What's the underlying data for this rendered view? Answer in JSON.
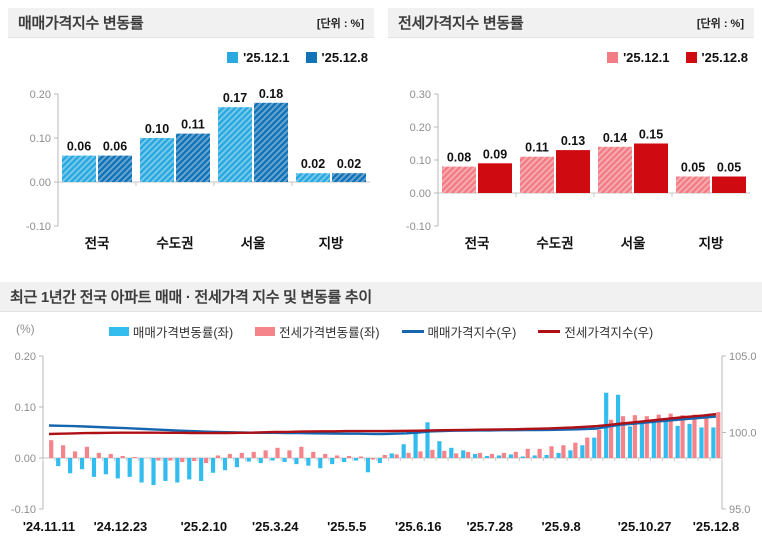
{
  "chart_data": [
    {
      "id": "sales-bar",
      "type": "bar",
      "title": "매매가격지수 변동률",
      "unit": "[단위 : %]",
      "categories": [
        "전국",
        "수도권",
        "서울",
        "지방"
      ],
      "series": [
        {
          "name": "'25.12.1",
          "color": "#2aa9e0",
          "hatch": true,
          "values": [
            0.06,
            0.1,
            0.17,
            0.02
          ]
        },
        {
          "name": "'25.12.8",
          "color": "#1273b7",
          "hatch": true,
          "values": [
            0.06,
            0.11,
            0.18,
            0.02
          ]
        }
      ],
      "yticks": [
        0.2,
        0.1,
        0.0,
        -0.1
      ],
      "ylim": [
        -0.1,
        0.2
      ],
      "grid": false,
      "legend_position": "top-right"
    },
    {
      "id": "jeonse-bar",
      "type": "bar",
      "title": "전세가격지수 변동률",
      "unit": "[단위 : %]",
      "categories": [
        "전국",
        "수도권",
        "서울",
        "지방"
      ],
      "series": [
        {
          "name": "'25.12.1",
          "color": "#f27d85",
          "hatch": true,
          "values": [
            0.08,
            0.11,
            0.14,
            0.05
          ]
        },
        {
          "name": "'25.12.8",
          "color": "#cf0a10",
          "hatch": false,
          "values": [
            0.09,
            0.13,
            0.15,
            0.05
          ]
        }
      ],
      "yticks": [
        0.3,
        0.2,
        0.1,
        0.0,
        -0.1
      ],
      "ylim": [
        -0.1,
        0.3
      ],
      "grid": false,
      "legend_position": "top-right"
    },
    {
      "id": "trend-combo",
      "type": "line",
      "title": "최근 1년간 전국 아파트 매매 · 전세가격 지수 및 변동률 추이",
      "left_axis_label": "(%)",
      "x_labels": [
        "'24.11.11",
        "'24.12.23",
        "'25.2.10",
        "'25.3.24",
        "'25.5.5",
        "'25.6.16",
        "'25.7.28",
        "'25.9.8",
        "'25.10.27",
        "'25.12.8"
      ],
      "x_label_positions": [
        0,
        6,
        13,
        19,
        25,
        31,
        37,
        43,
        50,
        56
      ],
      "left_ticks": [
        0.2,
        0.1,
        0.0,
        -0.1
      ],
      "right_ticks": [
        105.0,
        100.0,
        95.0
      ],
      "left_lim": [
        -0.1,
        0.2
      ],
      "right_lim": [
        95.0,
        105.0
      ],
      "grid": false,
      "legend_position": "top",
      "bar_series": [
        {
          "name": "매매가격변동률(좌)",
          "axis": "left",
          "color": "#33bdef",
          "values": [
            0.0,
            -0.016,
            -0.03,
            -0.022,
            -0.037,
            -0.032,
            -0.04,
            -0.037,
            -0.048,
            -0.053,
            -0.045,
            -0.048,
            -0.042,
            -0.045,
            -0.029,
            -0.024,
            -0.018,
            -0.007,
            -0.01,
            -0.005,
            -0.008,
            -0.012,
            -0.015,
            -0.02,
            -0.012,
            -0.008,
            -0.005,
            -0.028,
            -0.01,
            0.009,
            0.027,
            0.05,
            0.07,
            0.033,
            0.02,
            0.015,
            0.008,
            0.004,
            0.005,
            0.007,
            0.003,
            0.005,
            0.006,
            0.01,
            0.015,
            0.025,
            0.04,
            0.128,
            0.124,
            0.062,
            0.067,
            0.074,
            0.072,
            0.063,
            0.067,
            0.06,
            0.06
          ]
        },
        {
          "name": "전세가격변동률(좌)",
          "axis": "left",
          "color": "#f5848a",
          "values": [
            0.035,
            0.025,
            0.013,
            0.022,
            0.01,
            0.008,
            0.004,
            0.002,
            0.0,
            -0.005,
            -0.005,
            -0.008,
            -0.006,
            -0.01,
            0.005,
            0.008,
            0.01,
            0.012,
            0.015,
            0.02,
            0.015,
            0.022,
            0.012,
            0.008,
            0.005,
            0.004,
            0.003,
            -0.003,
            0.006,
            0.007,
            0.01,
            0.013,
            0.016,
            0.014,
            0.009,
            0.012,
            0.01,
            0.008,
            0.01,
            0.012,
            0.018,
            0.018,
            0.023,
            0.025,
            0.03,
            0.04,
            0.055,
            0.075,
            0.082,
            0.084,
            0.082,
            0.085,
            0.087,
            0.084,
            0.085,
            0.08,
            0.09
          ]
        }
      ],
      "line_series": [
        {
          "name": "매매가격지수(우)",
          "axis": "right",
          "color": "#1565af",
          "values": [
            100.46,
            100.44,
            100.42,
            100.39,
            100.36,
            100.33,
            100.3,
            100.27,
            100.23,
            100.19,
            100.16,
            100.12,
            100.09,
            100.06,
            100.04,
            100.02,
            100.0,
            99.99,
            99.98,
            99.98,
            99.97,
            99.96,
            99.95,
            99.94,
            99.93,
            99.92,
            99.92,
            99.91,
            99.9,
            99.92,
            99.95,
            100.0,
            100.07,
            100.1,
            100.12,
            100.13,
            100.14,
            100.14,
            100.15,
            100.15,
            100.16,
            100.16,
            100.17,
            100.18,
            100.2,
            100.22,
            100.26,
            100.39,
            100.51,
            100.57,
            100.64,
            100.71,
            100.78,
            100.85,
            100.91,
            100.98,
            101.04
          ]
        },
        {
          "name": "전세가격지수(우)",
          "axis": "right",
          "color": "#af1015",
          "values": [
            99.9,
            99.92,
            99.94,
            99.96,
            99.97,
            99.98,
            99.99,
            99.99,
            99.99,
            99.99,
            99.98,
            99.98,
            99.97,
            99.96,
            99.97,
            99.97,
            99.98,
            99.99,
            100.01,
            100.03,
            100.04,
            100.06,
            100.07,
            100.08,
            100.08,
            100.09,
            100.09,
            100.09,
            100.09,
            100.1,
            100.11,
            100.12,
            100.14,
            100.15,
            100.16,
            100.17,
            100.18,
            100.19,
            100.2,
            100.21,
            100.23,
            100.25,
            100.27,
            100.3,
            100.33,
            100.37,
            100.42,
            100.5,
            100.58,
            100.66,
            100.74,
            100.82,
            100.9,
            100.98,
            101.05,
            101.12,
            101.2
          ]
        }
      ]
    }
  ]
}
